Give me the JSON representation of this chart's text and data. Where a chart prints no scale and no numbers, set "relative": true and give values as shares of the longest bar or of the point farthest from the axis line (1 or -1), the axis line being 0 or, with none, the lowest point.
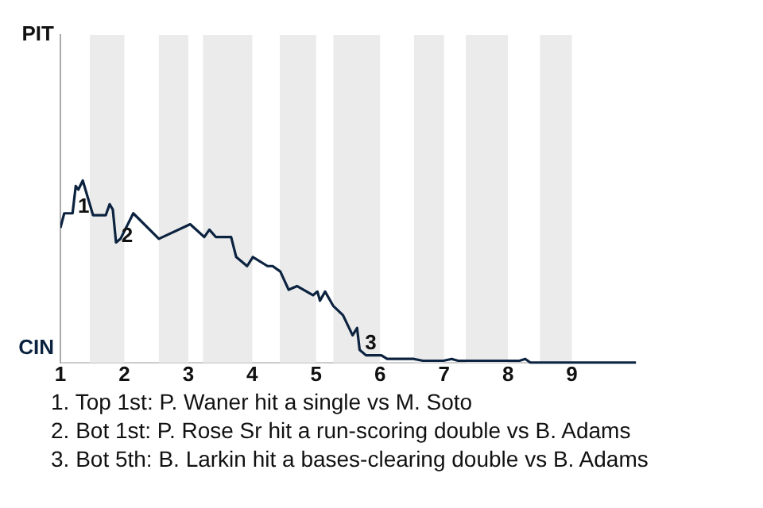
{
  "chart_data": {
    "type": "line",
    "relative": true,
    "x": [
      1,
      1.06,
      1.19,
      1.24,
      1.28,
      1.35,
      1.51,
      1.71,
      1.77,
      1.82,
      1.87,
      1.94,
      2.14,
      2.54,
      3.03,
      3.25,
      3.33,
      3.43,
      3.67,
      3.75,
      3.92,
      4.01,
      4.24,
      4.32,
      4.44,
      4.57,
      4.7,
      4.95,
      5.02,
      5.06,
      5.14,
      5.27,
      5.42,
      5.57,
      5.64,
      5.68,
      5.78,
      6.02,
      6.11,
      6.53,
      6.67,
      6.99,
      7.12,
      7.22,
      8.18,
      8.27,
      8.35,
      10
    ],
    "series": [
      {
        "color": "#0c2340",
        "values": [
          0.74,
          0.82,
          0.82,
          0.97,
          0.95,
          1,
          0.81,
          0.81,
          0.87,
          0.84,
          0.66,
          0.68,
          0.82,
          0.68,
          0.76,
          0.69,
          0.73,
          0.69,
          0.69,
          0.58,
          0.53,
          0.58,
          0.53,
          0.53,
          0.5,
          0.4,
          0.42,
          0.37,
          0.39,
          0.34,
          0.39,
          0.31,
          0.26,
          0.15,
          0.19,
          0.07,
          0.04,
          0.04,
          0.02,
          0.02,
          0.01,
          0.01,
          0.02,
          0.01,
          0.01,
          0.02,
          0,
          0
        ]
      }
    ],
    "xlim": [
      1,
      10
    ],
    "xticks": [
      1,
      2,
      3,
      4,
      5,
      6,
      7,
      8,
      9
    ],
    "bands": [
      {
        "axis": "x",
        "from": 1.46,
        "to": 2,
        "color": "#ebebeb"
      },
      {
        "axis": "x",
        "from": 2.54,
        "to": 3,
        "color": "#ebebeb"
      },
      {
        "axis": "x",
        "from": 3.23,
        "to": 4,
        "color": "#ebebeb"
      },
      {
        "axis": "x",
        "from": 4.43,
        "to": 5,
        "color": "#ebebeb"
      },
      {
        "axis": "x",
        "from": 5.27,
        "to": 6,
        "color": "#ebebeb"
      },
      {
        "axis": "x",
        "from": 6.53,
        "to": 7,
        "color": "#ebebeb"
      },
      {
        "axis": "x",
        "from": 7.34,
        "to": 8,
        "color": "#ebebeb"
      },
      {
        "axis": "x",
        "from": 8.5,
        "to": 9,
        "color": "#ebebeb"
      }
    ],
    "annotations": [
      "PIT",
      "CIN",
      {
        "text": "1",
        "x": 1.19,
        "y": 0.82
      },
      {
        "text": "2",
        "x": 1.87,
        "y": 0.66
      },
      {
        "text": "3",
        "x": 5.68,
        "y": 0.07
      },
      "1. Top 1st: P. Waner hit a single vs M. Soto",
      "2. Bot 1st: P. Rose Sr hit a run-scoring double vs B. Adams",
      "3. Bot 5th: B. Larkin hit a bases-clearing double vs B. Adams"
    ]
  }
}
